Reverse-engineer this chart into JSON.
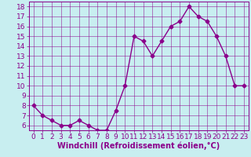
{
  "x": [
    0,
    1,
    2,
    3,
    4,
    5,
    6,
    7,
    8,
    9,
    10,
    11,
    12,
    13,
    14,
    15,
    16,
    17,
    18,
    19,
    20,
    21,
    22,
    23
  ],
  "y": [
    8,
    7,
    6.5,
    6,
    6,
    6.5,
    6,
    5.5,
    5.5,
    7.5,
    10,
    15,
    14.5,
    13,
    14.5,
    16,
    16.5,
    18,
    17,
    16.5,
    15,
    13,
    10,
    10
  ],
  "line_color": "#8b008b",
  "marker": "D",
  "marker_size": 2.5,
  "bg_color": "#c8eef0",
  "grid_color": "#8b008b",
  "xlabel": "Windchill (Refroidissement éolien,°C)",
  "ylabel": "",
  "ylim": [
    5.5,
    18.5
  ],
  "xlim": [
    -0.5,
    23.5
  ],
  "yticks": [
    6,
    7,
    8,
    9,
    10,
    11,
    12,
    13,
    14,
    15,
    16,
    17,
    18
  ],
  "xticks": [
    0,
    1,
    2,
    3,
    4,
    5,
    6,
    7,
    8,
    9,
    10,
    11,
    12,
    13,
    14,
    15,
    16,
    17,
    18,
    19,
    20,
    21,
    22,
    23
  ],
  "label_color": "#8b008b",
  "tick_color": "#8b008b",
  "font_size": 6.5,
  "xlabel_fontsize": 7.0,
  "linewidth": 1.0,
  "spine_color": "#8b008b",
  "grid_alpha": 0.7,
  "grid_linewidth": 0.5
}
